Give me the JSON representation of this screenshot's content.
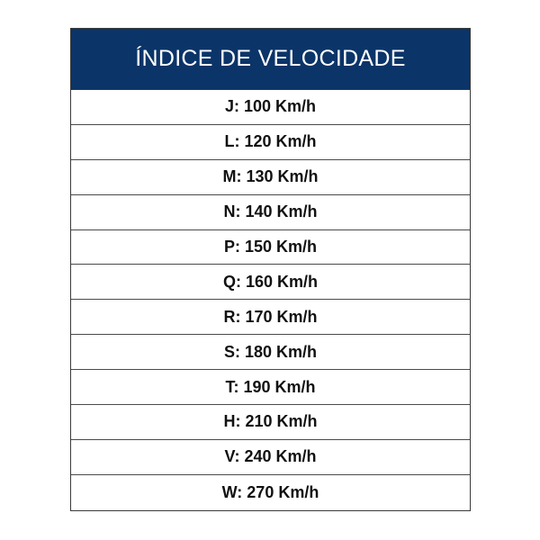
{
  "table": {
    "header": "ÍNDICE DE VELOCIDADE",
    "header_color": "#0b3468",
    "rows": [
      "J: 100 Km/h",
      "L: 120 Km/h",
      "M: 130 Km/h",
      "N: 140 Km/h",
      "P: 150 Km/h",
      "Q: 160 Km/h",
      "R: 170 Km/h",
      "S: 180 Km/h",
      "T: 190 Km/h",
      "H: 210 Km/h",
      "V: 240 Km/h",
      "W: 270 Km/h"
    ]
  }
}
